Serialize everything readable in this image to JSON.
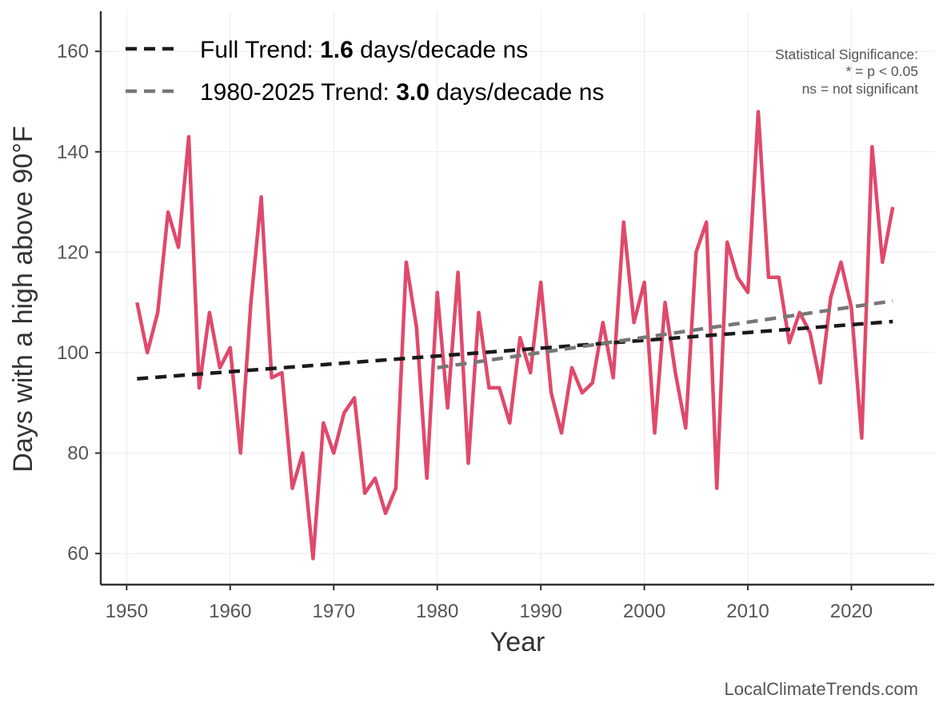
{
  "chart_data": {
    "type": "line",
    "xlabel": "Year",
    "ylabel": "Days with a high above 90°F",
    "xlim": [
      1947.5,
      2028.0
    ],
    "ylim": [
      53.8,
      168.0
    ],
    "xticks": [
      1950,
      1960,
      1970,
      1980,
      1990,
      2000,
      2010,
      2020
    ],
    "yticks": [
      60,
      80,
      100,
      120,
      140,
      160
    ],
    "grid": true,
    "legend_position": "top-left",
    "series": [
      {
        "color": "#e0496b",
        "x": [
          1951,
          1952,
          1953,
          1954,
          1955,
          1956,
          1957,
          1958,
          1959,
          1960,
          1961,
          1962,
          1963,
          1964,
          1965,
          1966,
          1967,
          1968,
          1969,
          1970,
          1971,
          1972,
          1973,
          1974,
          1975,
          1976,
          1977,
          1978,
          1979,
          1980,
          1981,
          1982,
          1983,
          1984,
          1985,
          1986,
          1987,
          1988,
          1989,
          1990,
          1991,
          1992,
          1993,
          1994,
          1995,
          1996,
          1997,
          1998,
          1999,
          2000,
          2001,
          2002,
          2003,
          2004,
          2005,
          2006,
          2007,
          2008,
          2009,
          2010,
          2011,
          2012,
          2013,
          2014,
          2015,
          2016,
          2017,
          2018,
          2019,
          2020,
          2021,
          2022,
          2023,
          2024
        ],
        "y": [
          110,
          100,
          108,
          128,
          121,
          143,
          93,
          108,
          97,
          101,
          80,
          110,
          131,
          95,
          96,
          73,
          80,
          59,
          86,
          80,
          88,
          91,
          72,
          75,
          68,
          73,
          118,
          105,
          75,
          112,
          89,
          116,
          78,
          108,
          93,
          93,
          86,
          103,
          96,
          114,
          92,
          84,
          97,
          92,
          94,
          106,
          95,
          126,
          106,
          114,
          84,
          110,
          96,
          85,
          120,
          126,
          73,
          122,
          115,
          112,
          148,
          115,
          115,
          102,
          108,
          104,
          94,
          111,
          118,
          109,
          83,
          141,
          118,
          129
        ]
      }
    ],
    "trend_lines": [
      {
        "name": "Full Trend",
        "color": "#1a1a1a",
        "x": [
          1951,
          2024
        ],
        "y": [
          94.8,
          106.2
        ]
      },
      {
        "name": "1980-2025 Trend",
        "color": "#777777",
        "x": [
          1980,
          2024
        ],
        "y": [
          97.0,
          110.3
        ]
      }
    ],
    "legend": [
      {
        "prefix": "Full Trend: ",
        "value": "1.6",
        "suffix": " days/decade ns",
        "color": "#1a1a1a"
      },
      {
        "prefix": "1980-2025 Trend: ",
        "value": "3.0",
        "suffix": " days/decade ns",
        "color": "#777777"
      }
    ],
    "significance_note": [
      "Statistical Significance:",
      "* = p < 0.05",
      "ns = not significant"
    ],
    "source": "LocalClimateTrends.com"
  }
}
